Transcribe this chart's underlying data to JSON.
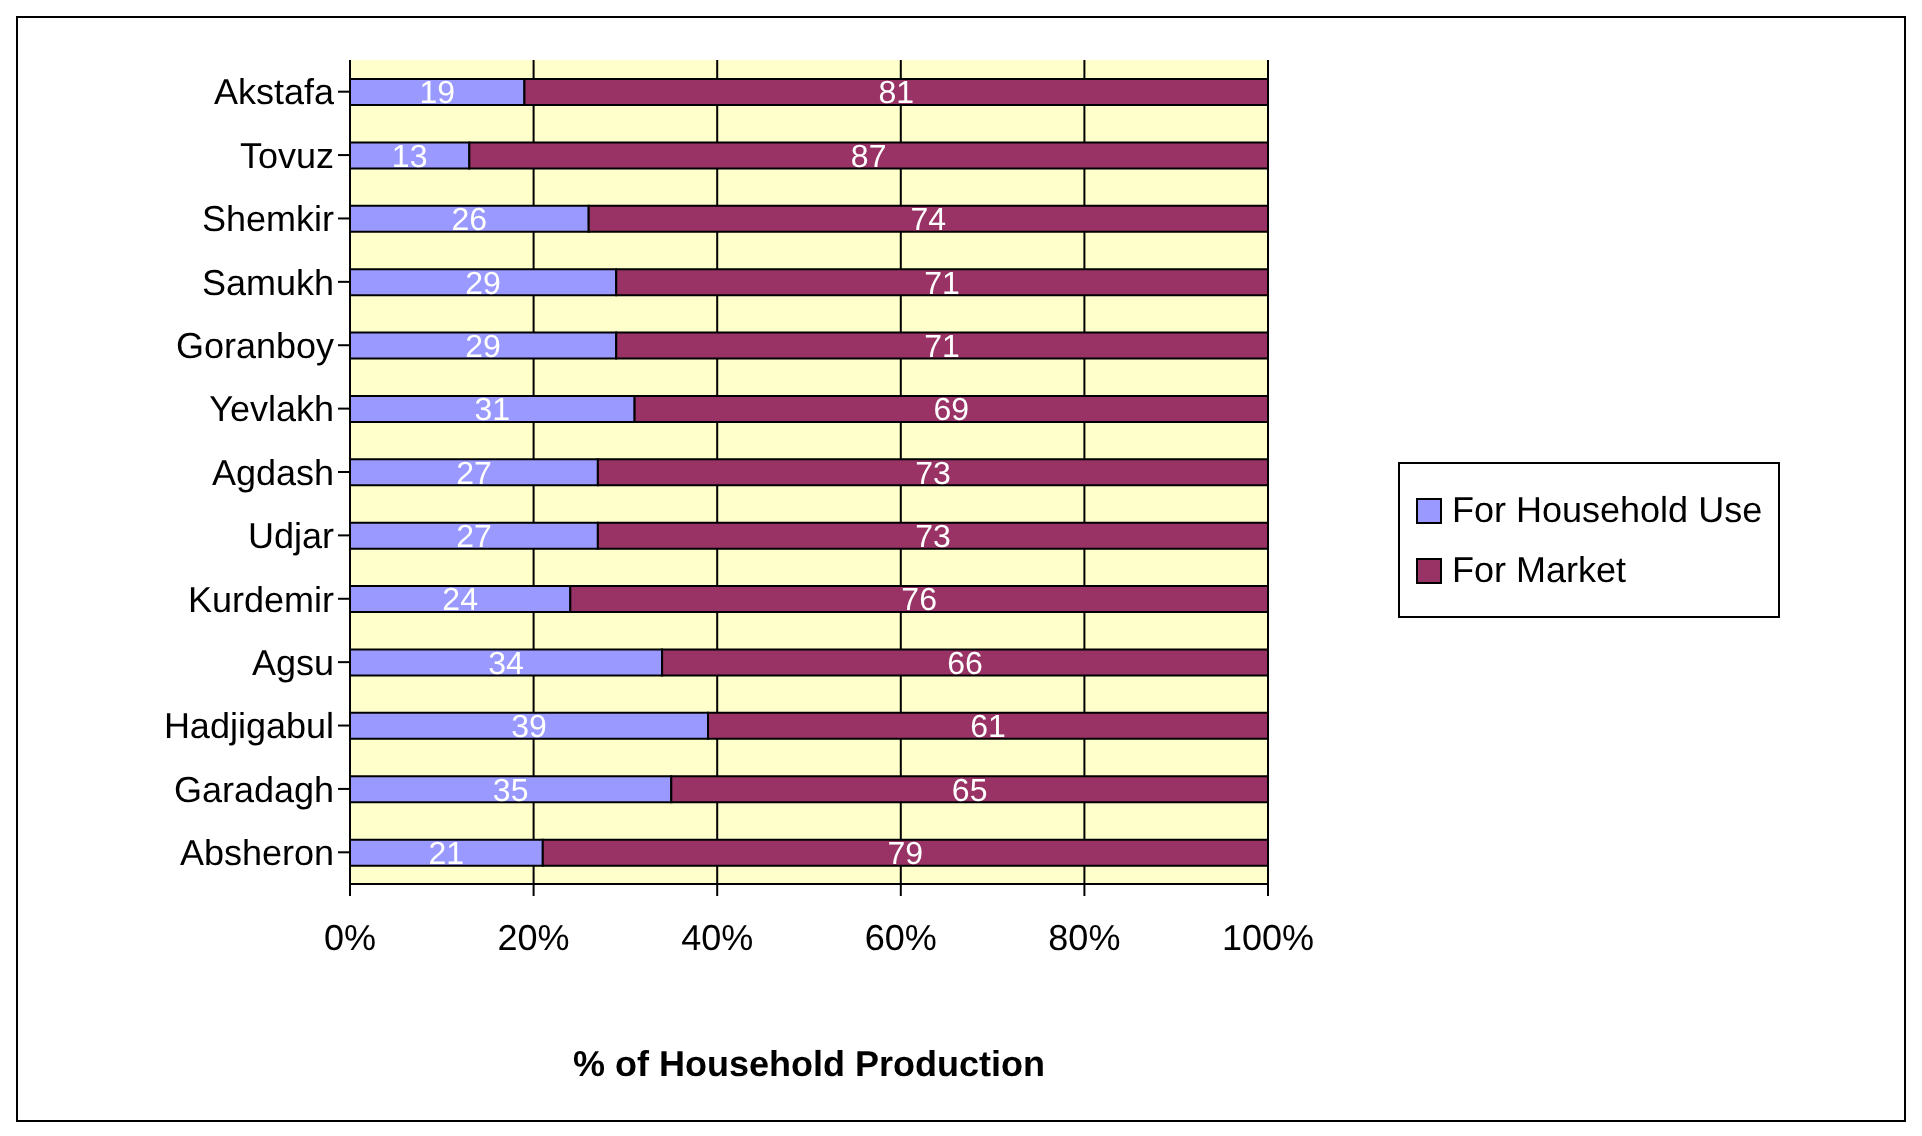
{
  "chart_data": {
    "type": "bar",
    "orientation": "horizontal",
    "stacked": true,
    "xlabel": "% of Household Production",
    "categories": [
      "Akstafa",
      "Tovuz",
      "Shemkir",
      "Samukh",
      "Goranboy",
      "Yevlakh",
      "Agdash",
      "Udjar",
      "Kurdemir",
      "Agsu",
      "Hadjigabul",
      "Garadagh",
      "Absheron"
    ],
    "series": [
      {
        "name": "For Household Use",
        "color": "#9999ff",
        "values": [
          19,
          13,
          26,
          29,
          29,
          31,
          27,
          27,
          24,
          34,
          39,
          35,
          21
        ]
      },
      {
        "name": "For Market",
        "color": "#993366",
        "values": [
          81,
          87,
          74,
          71,
          71,
          69,
          73,
          73,
          76,
          66,
          61,
          65,
          79
        ]
      }
    ],
    "xlim": [
      0,
      100
    ],
    "xticks": [
      {
        "value": 0,
        "label": "0%"
      },
      {
        "value": 20,
        "label": "20%"
      },
      {
        "value": 40,
        "label": "40%"
      },
      {
        "value": 60,
        "label": "60%"
      },
      {
        "value": 80,
        "label": "80%"
      },
      {
        "value": 100,
        "label": "100%"
      }
    ],
    "grid": "x",
    "legend": "right",
    "data_labels": true
  }
}
